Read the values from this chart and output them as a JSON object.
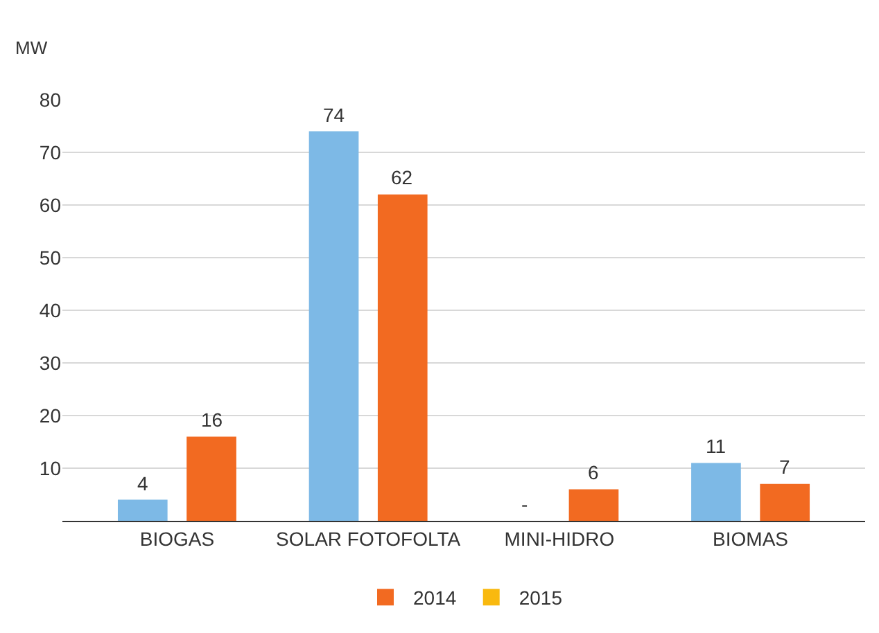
{
  "chart_data": {
    "type": "bar",
    "ylabel": "MW",
    "categories": [
      "BIOGAS",
      "SOLAR FOTOFOLTA",
      "MINI-HIDRO",
      "BIOMAS"
    ],
    "series": [
      {
        "color": "#7db9e6",
        "values": [
          4,
          74,
          null,
          11
        ],
        "value_labels": [
          "4",
          "74",
          "-",
          "11"
        ]
      },
      {
        "name": "2014",
        "color": "#f26a21",
        "values": [
          16,
          62,
          6,
          7
        ],
        "value_labels": [
          "16",
          "62",
          "6",
          "7"
        ]
      },
      {
        "name": "2015",
        "color": "#f9b90f",
        "values": [
          null,
          null,
          null,
          null
        ]
      }
    ],
    "ylim": [
      0,
      80
    ],
    "yticks": [
      10,
      20,
      30,
      40,
      50,
      60,
      70,
      80
    ],
    "grid": "y",
    "legend": "bottom"
  }
}
